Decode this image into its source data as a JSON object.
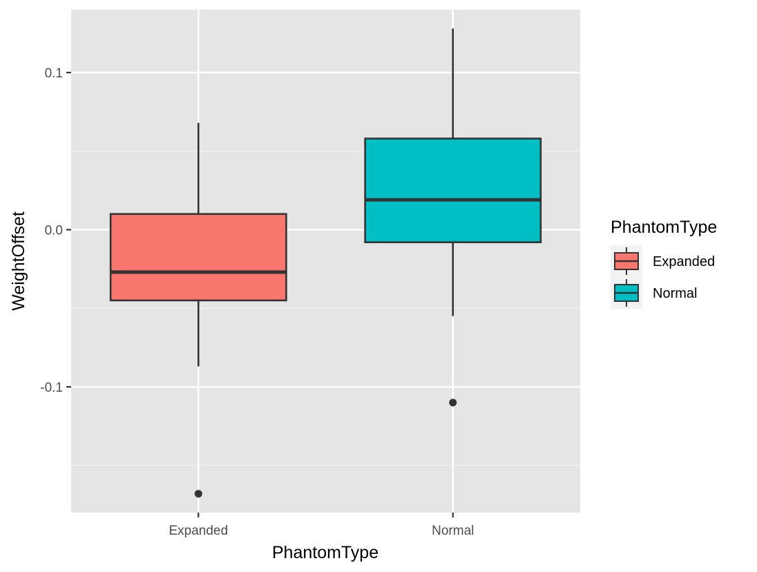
{
  "chart_data": {
    "type": "boxplot",
    "xlabel": "PhantomType",
    "ylabel": "WeightOffset",
    "ylim": [
      -0.18,
      0.14
    ],
    "y_ticks": [
      -0.1,
      0.0,
      0.1
    ],
    "y_tick_labels": [
      "-0.1",
      "0.0",
      "0.1"
    ],
    "categories": [
      "Expanded",
      "Normal"
    ],
    "grid": true,
    "background_color": "#e5e5e5",
    "legend": {
      "title": "PhantomType",
      "position": "right",
      "entries": [
        {
          "label": "Expanded",
          "color": "#f8766d"
        },
        {
          "label": "Normal",
          "color": "#00bfc4"
        }
      ]
    },
    "series": [
      {
        "name": "Expanded",
        "color": "#f8766d",
        "whisker_low": -0.087,
        "q1": -0.045,
        "median": -0.027,
        "q3": 0.01,
        "whisker_high": 0.068,
        "outliers": [
          -0.168
        ]
      },
      {
        "name": "Normal",
        "color": "#00bfc4",
        "whisker_low": -0.055,
        "q1": -0.008,
        "median": 0.019,
        "q3": 0.058,
        "whisker_high": 0.128,
        "outliers": [
          -0.11
        ]
      }
    ]
  }
}
